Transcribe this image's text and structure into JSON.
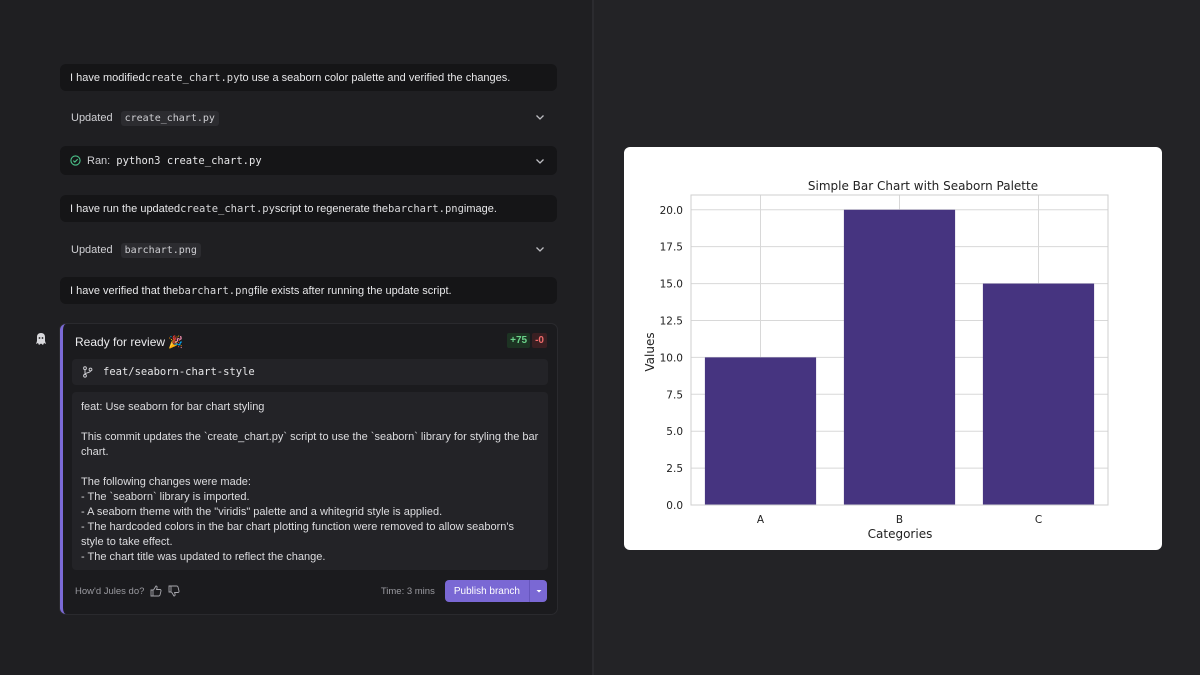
{
  "messages": {
    "m1": {
      "pre": "I have modified ",
      "code": "create_chart.py",
      "post": " to use a seaborn color palette and verified the changes."
    },
    "m2": {
      "pre": "I have run the updated ",
      "code": "create_chart.py",
      "mid": " script to regenerate the ",
      "code2": "barchart.png",
      "post": " image."
    },
    "m3": {
      "pre": "I have verified that the ",
      "code": "barchart.png",
      "post": " file exists after running the update script."
    }
  },
  "updated1": {
    "label": "Updated",
    "file": "create_chart.py"
  },
  "ran": {
    "label": "Ran:",
    "command": "python3 create_chart.py"
  },
  "updated2": {
    "label": "Updated",
    "file": "barchart.png"
  },
  "review": {
    "title": "Ready for review 🎉",
    "additions": "+75",
    "deletions": "-0",
    "branch": "feat/seaborn-chart-style",
    "commit_lines": [
      "feat: Use seaborn for bar chart styling",
      "",
      "This commit updates the `create_chart.py` script to use the `seaborn` library for styling the bar chart.",
      "",
      "The following changes were made:",
      "- The `seaborn` library is imported.",
      "- A seaborn theme with the \"viridis\" palette and a whitegrid style is applied.",
      "- The hardcoded colors in the bar chart plotting function were removed to allow seaborn's style to take effect.",
      "- The chart title was updated to reflect the change."
    ],
    "feedback_prompt": "How'd Jules do?",
    "time": "Time: 3 mins",
    "publish_label": "Publish branch"
  },
  "colors": {
    "accent": "#7a68d4",
    "bar": "#463480",
    "add": "#6bd38a",
    "del": "#ef6b6b",
    "check": "#4cc38a"
  },
  "chart_data": {
    "type": "bar",
    "title": "Simple Bar Chart with Seaborn Palette",
    "xlabel": "Categories",
    "ylabel": "Values",
    "categories": [
      "A",
      "B",
      "C"
    ],
    "values": [
      10,
      20,
      15
    ],
    "ylim": [
      0,
      21
    ],
    "yticks": [
      "0.0",
      "2.5",
      "5.0",
      "7.5",
      "10.0",
      "12.5",
      "15.0",
      "17.5",
      "20.0"
    ],
    "ytick_values": [
      0,
      2.5,
      5,
      7.5,
      10,
      12.5,
      15,
      17.5,
      20
    ],
    "grid": true
  }
}
